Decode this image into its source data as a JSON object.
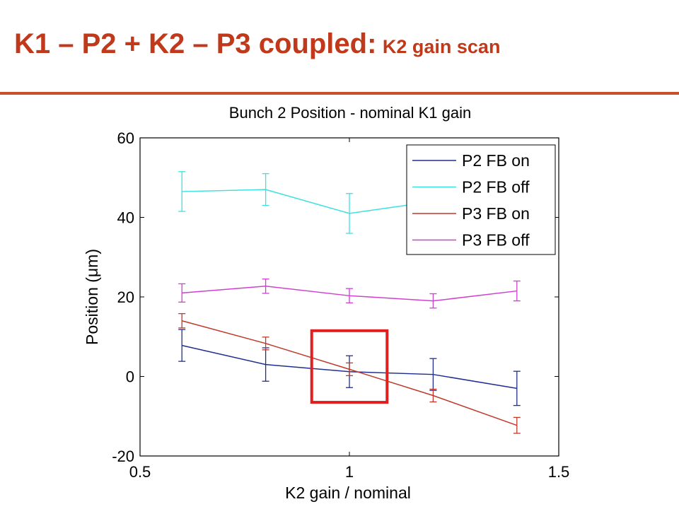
{
  "slide": {
    "title_main": "K1 – P2 + K2 – P3 coupled:",
    "title_sub": "K2 gain scan",
    "title_color": "#c0391b",
    "rule_color": "#c8502a"
  },
  "chart_data": {
    "type": "line",
    "title": "Bunch 2 Position - nominal K1 gain",
    "xlabel": "K2 gain / nominal",
    "ylabel": "Position (μm)",
    "xlim": [
      0.5,
      1.5
    ],
    "ylim": [
      -20,
      60
    ],
    "xticks": [
      0.5,
      1,
      1.5
    ],
    "xtick_labels": [
      "0.5",
      "1",
      "1.5"
    ],
    "yticks": [
      -20,
      0,
      20,
      40,
      60
    ],
    "ytick_labels": [
      "-20",
      "0",
      "20",
      "40",
      "60"
    ],
    "grid": false,
    "legend_position": "top-right",
    "x": [
      0.6,
      0.8,
      1.0,
      1.2,
      1.4
    ],
    "series": [
      {
        "name": "P2 FB on",
        "color": "#1f2f8f",
        "values": [
          7.8,
          3.0,
          1.2,
          0.5,
          -3.0
        ],
        "errors": [
          4.0,
          4.2,
          4.0,
          4.0,
          4.3
        ]
      },
      {
        "name": "P2 FB off",
        "color": "#3ee0e0",
        "values": [
          46.5,
          47.0,
          41.0,
          44.0,
          null
        ],
        "errors": [
          5.0,
          4.0,
          5.0,
          4.0,
          null
        ]
      },
      {
        "name": "P3 FB on",
        "color": "#c0392b",
        "values": [
          14.0,
          8.3,
          1.8,
          -4.8,
          -12.3
        ],
        "errors": [
          1.8,
          1.6,
          1.6,
          1.6,
          2.0
        ]
      },
      {
        "name": "P3 FB off",
        "color": "#d040d0",
        "values": [
          21.0,
          22.7,
          20.3,
          19.0,
          21.5
        ],
        "errors": [
          2.3,
          1.8,
          1.8,
          1.8,
          2.5
        ]
      }
    ],
    "highlight_box": {
      "x_range": [
        0.91,
        1.09
      ],
      "y_range": [
        -6.5,
        11.5
      ],
      "color": "#e02020"
    }
  }
}
